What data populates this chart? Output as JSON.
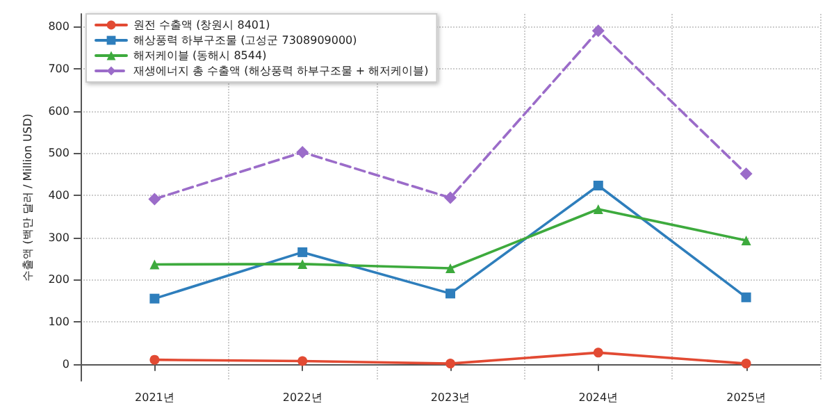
{
  "chart_data": {
    "type": "line",
    "ylabel": "수출액 (백만 달러 / Million USD)",
    "categories": [
      "2021년",
      "2022년",
      "2023년",
      "2024년",
      "2025년"
    ],
    "series": [
      {
        "name": "원전 수출액 (창원시 8401)",
        "color": "#e24a33",
        "marker": "circle",
        "line_style": "solid",
        "values": [
          10,
          7,
          1,
          27,
          1
        ]
      },
      {
        "name": "해상풍력 하부구조물 (고성군 7308909000)",
        "color": "#2e7ebc",
        "marker": "square",
        "line_style": "solid",
        "values": [
          155,
          265,
          167,
          423,
          158
        ]
      },
      {
        "name": "해저케이블 (동해시 8544)",
        "color": "#3daa3d",
        "marker": "triangle",
        "line_style": "solid",
        "values": [
          236,
          237,
          227,
          367,
          293
        ]
      },
      {
        "name": "재생에너지 총 수출액 (해상풍력 하부구조물 + 해저케이블)",
        "color": "#9b6cc9",
        "marker": "diamond",
        "line_style": "dashed",
        "values": [
          391,
          502,
          394,
          790,
          451
        ]
      }
    ],
    "ylim": [
      -40,
      830
    ],
    "yticks": [
      0,
      100,
      200,
      300,
      400,
      500,
      600,
      700,
      800
    ],
    "grid": true,
    "legend": "top left"
  }
}
